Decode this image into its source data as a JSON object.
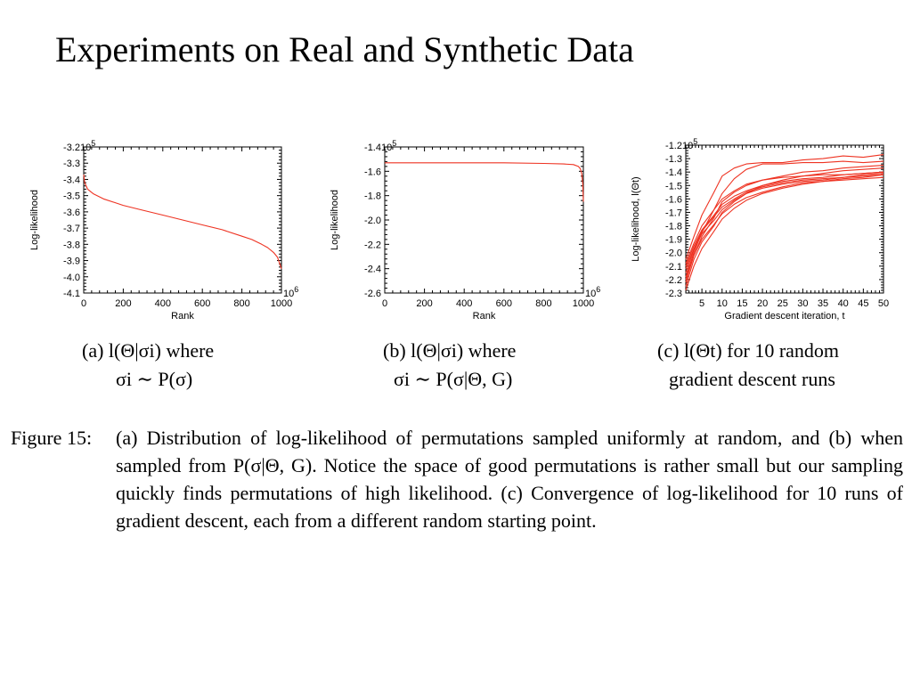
{
  "slide": {
    "title": "Experiments on Real and Synthetic Data"
  },
  "figure": {
    "label": "Figure 15:",
    "caption_text": "(a) Distribution of log-likelihood of permutations sampled uniformly at random, and (b) when sampled from P(σ|Θ, G). Notice the space of good permutations is rather small but our sampling quickly finds permutations of high likelihood. (c) Convergence of log-likelihood for 10 runs of gradient descent, each from a different random starting point."
  },
  "panels": {
    "a": {
      "caption_line1": "(a) l(Θ|σi) where",
      "caption_line2": "σi ∼ P(σ)"
    },
    "b": {
      "caption_line1": "(b) l(Θ|σi) where",
      "caption_line2": "σi ∼ P(σ|Θ, G)"
    },
    "c": {
      "caption_line1": "(c) l(Θt) for 10 random",
      "caption_line2": "gradient descent runs"
    }
  },
  "colors": {
    "series": "#ee3322",
    "axis": "#000000"
  },
  "chart_data": [
    {
      "type": "line",
      "title": "",
      "xlabel": "Rank",
      "ylabel": "Log-likelihood",
      "x_multiplier": "10^6",
      "y_multiplier": "10^5",
      "xlim": [
        0,
        1000
      ],
      "ylim": [
        -4.1,
        -3.2
      ],
      "xticks": [
        "0",
        "200",
        "400",
        "600",
        "800",
        "1000"
      ],
      "yticks": [
        "-3.2",
        "-3.3",
        "-3.4",
        "-3.5",
        "-3.6",
        "-3.7",
        "-3.8",
        "-3.9",
        "-4.0",
        "-4.1"
      ],
      "grid": false,
      "series": [
        {
          "x": [
            0,
            5,
            20,
            50,
            100,
            200,
            300,
            400,
            500,
            600,
            700,
            800,
            850,
            900,
            930,
            960,
            980,
            1000
          ],
          "y": [
            -3.37,
            -3.42,
            -3.46,
            -3.49,
            -3.52,
            -3.56,
            -3.59,
            -3.62,
            -3.65,
            -3.68,
            -3.71,
            -3.75,
            -3.77,
            -3.8,
            -3.82,
            -3.85,
            -3.88,
            -3.95
          ]
        }
      ]
    },
    {
      "type": "line",
      "title": "",
      "xlabel": "Rank",
      "ylabel": "Log-likelihood",
      "x_multiplier": "10^6",
      "y_multiplier": "10^5",
      "xlim": [
        0,
        1000
      ],
      "ylim": [
        -2.6,
        -1.4
      ],
      "xticks": [
        "0",
        "200",
        "400",
        "600",
        "800",
        "1000"
      ],
      "yticks": [
        "-1.4",
        "-1.6",
        "-1.8",
        "-2.0",
        "-2.2",
        "-2.4",
        "-2.6"
      ],
      "grid": false,
      "series": [
        {
          "x": [
            0,
            200,
            400,
            600,
            800,
            900,
            950,
            975,
            985,
            992,
            997,
            1000
          ],
          "y": [
            -1.53,
            -1.53,
            -1.53,
            -1.53,
            -1.535,
            -1.54,
            -1.545,
            -1.56,
            -1.58,
            -1.62,
            -1.7,
            -1.85
          ]
        }
      ]
    },
    {
      "type": "line",
      "title": "",
      "xlabel": "Gradient descent iteration, t",
      "ylabel": "Log-likelihood, l(Θt)",
      "y_multiplier": "10^5",
      "xlim": [
        1,
        50
      ],
      "ylim": [
        -2.3,
        -1.2
      ],
      "xticks": [
        "5",
        "10",
        "15",
        "20",
        "25",
        "30",
        "35",
        "40",
        "45",
        "50"
      ],
      "yticks": [
        "-1.2",
        "-1.3",
        "-1.4",
        "-1.5",
        "-1.6",
        "-1.7",
        "-1.8",
        "-1.9",
        "-2.0",
        "-2.1",
        "-2.2",
        "-2.3"
      ],
      "grid": false,
      "series": [
        {
          "x": [
            1,
            3,
            5,
            8,
            10,
            13,
            16,
            20,
            25,
            30,
            35,
            40,
            45,
            50
          ],
          "y": [
            -2.05,
            -1.88,
            -1.72,
            -1.55,
            -1.43,
            -1.37,
            -1.34,
            -1.33,
            -1.33,
            -1.31,
            -1.3,
            -1.28,
            -1.29,
            -1.27
          ]
        },
        {
          "x": [
            1,
            3,
            5,
            8,
            10,
            13,
            16,
            20,
            25,
            30,
            35,
            40,
            45,
            50
          ],
          "y": [
            -2.18,
            -2.0,
            -1.85,
            -1.68,
            -1.56,
            -1.45,
            -1.38,
            -1.34,
            -1.34,
            -1.33,
            -1.33,
            -1.32,
            -1.33,
            -1.32
          ]
        },
        {
          "x": [
            1,
            3,
            5,
            8,
            10,
            13,
            16,
            20,
            25,
            30,
            35,
            40,
            45,
            50
          ],
          "y": [
            -2.22,
            -2.02,
            -1.88,
            -1.74,
            -1.62,
            -1.55,
            -1.5,
            -1.46,
            -1.43,
            -1.4,
            -1.39,
            -1.37,
            -1.36,
            -1.35
          ]
        },
        {
          "x": [
            1,
            3,
            5,
            8,
            10,
            13,
            16,
            20,
            25,
            30,
            35,
            40,
            45,
            50
          ],
          "y": [
            -2.25,
            -2.05,
            -1.92,
            -1.8,
            -1.7,
            -1.62,
            -1.56,
            -1.5,
            -1.46,
            -1.43,
            -1.41,
            -1.39,
            -1.38,
            -1.37
          ]
        },
        {
          "x": [
            1,
            3,
            5,
            8,
            10,
            13,
            16,
            20,
            25,
            30,
            35,
            40,
            45,
            50
          ],
          "y": [
            -2.1,
            -1.95,
            -1.83,
            -1.72,
            -1.64,
            -1.58,
            -1.54,
            -1.5,
            -1.47,
            -1.45,
            -1.44,
            -1.42,
            -1.41,
            -1.4
          ]
        },
        {
          "x": [
            1,
            3,
            5,
            8,
            10,
            13,
            16,
            20,
            25,
            30,
            35,
            40,
            45,
            50
          ],
          "y": [
            -2.15,
            -1.98,
            -1.86,
            -1.76,
            -1.68,
            -1.61,
            -1.56,
            -1.52,
            -1.49,
            -1.47,
            -1.46,
            -1.44,
            -1.43,
            -1.42
          ]
        },
        {
          "x": [
            1,
            3,
            5,
            8,
            10,
            13,
            16,
            20,
            25,
            30,
            35,
            40,
            45,
            50
          ],
          "y": [
            -2.28,
            -2.1,
            -1.97,
            -1.84,
            -1.75,
            -1.67,
            -1.61,
            -1.56,
            -1.52,
            -1.49,
            -1.47,
            -1.46,
            -1.45,
            -1.44
          ]
        },
        {
          "x": [
            1,
            3,
            5,
            8,
            10,
            13,
            16,
            20,
            25,
            30,
            35,
            40,
            45,
            50
          ],
          "y": [
            -2.08,
            -1.93,
            -1.8,
            -1.68,
            -1.6,
            -1.54,
            -1.49,
            -1.46,
            -1.44,
            -1.43,
            -1.42,
            -1.42,
            -1.41,
            -1.4
          ]
        },
        {
          "x": [
            1,
            3,
            5,
            8,
            10,
            13,
            16,
            20,
            25,
            30,
            35,
            40,
            45,
            50
          ],
          "y": [
            -2.2,
            -2.02,
            -1.9,
            -1.79,
            -1.71,
            -1.64,
            -1.59,
            -1.55,
            -1.51,
            -1.48,
            -1.47,
            -1.45,
            -1.44,
            -1.42
          ]
        },
        {
          "x": [
            1,
            3,
            5,
            8,
            10,
            13,
            16,
            20,
            25,
            30,
            35,
            40,
            45,
            50
          ],
          "y": [
            -2.12,
            -1.97,
            -1.84,
            -1.73,
            -1.66,
            -1.6,
            -1.55,
            -1.51,
            -1.48,
            -1.46,
            -1.45,
            -1.44,
            -1.42,
            -1.41
          ]
        }
      ]
    }
  ]
}
